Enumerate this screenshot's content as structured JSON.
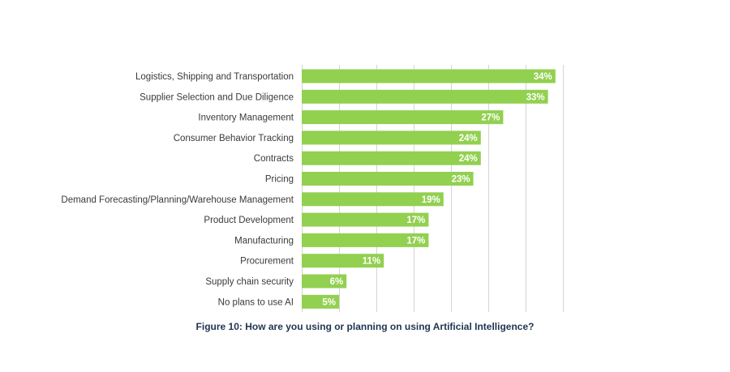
{
  "chart_data": {
    "type": "bar",
    "orientation": "horizontal",
    "title": "",
    "xlabel": "",
    "ylabel": "",
    "xlim": [
      0,
      35
    ],
    "grid": true,
    "bar_color": "#92d050",
    "categories": [
      "Logistics, Shipping and Transportation",
      "Supplier Selection and Due Diligence",
      "Inventory Management",
      "Consumer Behavior Tracking",
      "Contracts",
      "Pricing",
      "Demand Forecasting/Planning/Warehouse Management",
      "Product Development",
      "Manufacturing",
      "Procurement",
      "Supply chain security",
      "No plans to use AI"
    ],
    "values": [
      34,
      33,
      27,
      24,
      24,
      23,
      19,
      17,
      17,
      11,
      6,
      5
    ],
    "value_labels": [
      "34%",
      "33%",
      "27%",
      "24%",
      "24%",
      "23%",
      "19%",
      "17%",
      "17%",
      "11%",
      "6%",
      "5%"
    ]
  },
  "caption": "Figure 10: How are you using or planning on using Artificial Intelligence?"
}
